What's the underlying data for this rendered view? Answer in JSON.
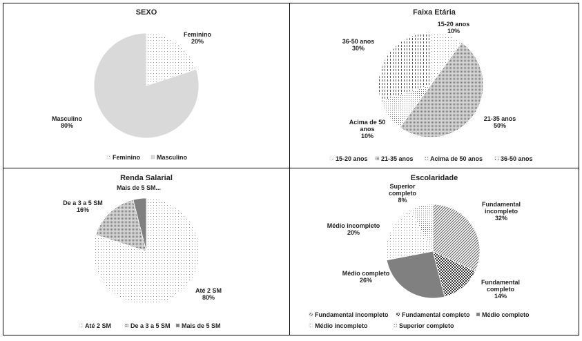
{
  "chart_data": [
    {
      "type": "pie",
      "title": "SEXO",
      "categories": [
        "Feminino",
        "Masculino"
      ],
      "values": [
        20,
        80
      ],
      "value_labels": [
        "20%",
        "80%"
      ],
      "legend_position": "bottom",
      "patterns": [
        "dots-fine",
        "light-solid"
      ]
    },
    {
      "type": "pie",
      "title": "Faixa Etária",
      "categories": [
        "15-20 anos",
        "21-35 anos",
        "Acima de 50 anos",
        "36-50 anos"
      ],
      "values": [
        10,
        50,
        10,
        30
      ],
      "value_labels": [
        "10%",
        "50%",
        "10%",
        "30%"
      ],
      "label_lines": [
        [
          "15-20 anos",
          "10%"
        ],
        [
          "21-35 anos",
          "50%"
        ],
        [
          "Acima  de 50",
          "anos",
          "10%"
        ],
        [
          "36-50 anos",
          "30%"
        ]
      ],
      "legend_position": "bottom",
      "patterns": [
        "dots-fine",
        "dots-dense",
        "dots-medium",
        "dashes"
      ]
    },
    {
      "type": "pie",
      "title": "Renda Salarial",
      "categories": [
        "Até 2 SM",
        "De a 3 a 5 SM",
        "Mais de 5 SM"
      ],
      "values": [
        80,
        16,
        4
      ],
      "value_labels": [
        "80%",
        "16%",
        ""
      ],
      "label_lines": [
        [
          "Até 2 SM",
          "80%"
        ],
        [
          "De a 3 a 5 SM",
          "16%"
        ],
        [
          "Mais de 5 SM..."
        ]
      ],
      "legend_position": "bottom",
      "patterns": [
        "dots-fine",
        "dots-dense",
        "dark-solid"
      ]
    },
    {
      "type": "pie",
      "title": "Escolaridade",
      "categories": [
        "Fundamental incompleto",
        "Fundamental completo",
        "Médio completo",
        "Médio incompleto",
        "Superior completo"
      ],
      "values": [
        32,
        14,
        26,
        20,
        8
      ],
      "value_labels": [
        "32%",
        "14%",
        "26%",
        "20%",
        "8%"
      ],
      "label_lines": [
        [
          "Fundamental",
          "incompleto",
          "32%"
        ],
        [
          "Fundamental",
          "completo",
          "14%"
        ],
        [
          "Médio completo",
          "26%"
        ],
        [
          "Médio incompleto",
          "20%"
        ],
        [
          "Superior",
          "completo",
          "8%"
        ]
      ],
      "legend_position": "bottom",
      "patterns": [
        "diagonal",
        "checker",
        "dark-solid",
        "dots-fine",
        "dots-medium"
      ]
    }
  ]
}
